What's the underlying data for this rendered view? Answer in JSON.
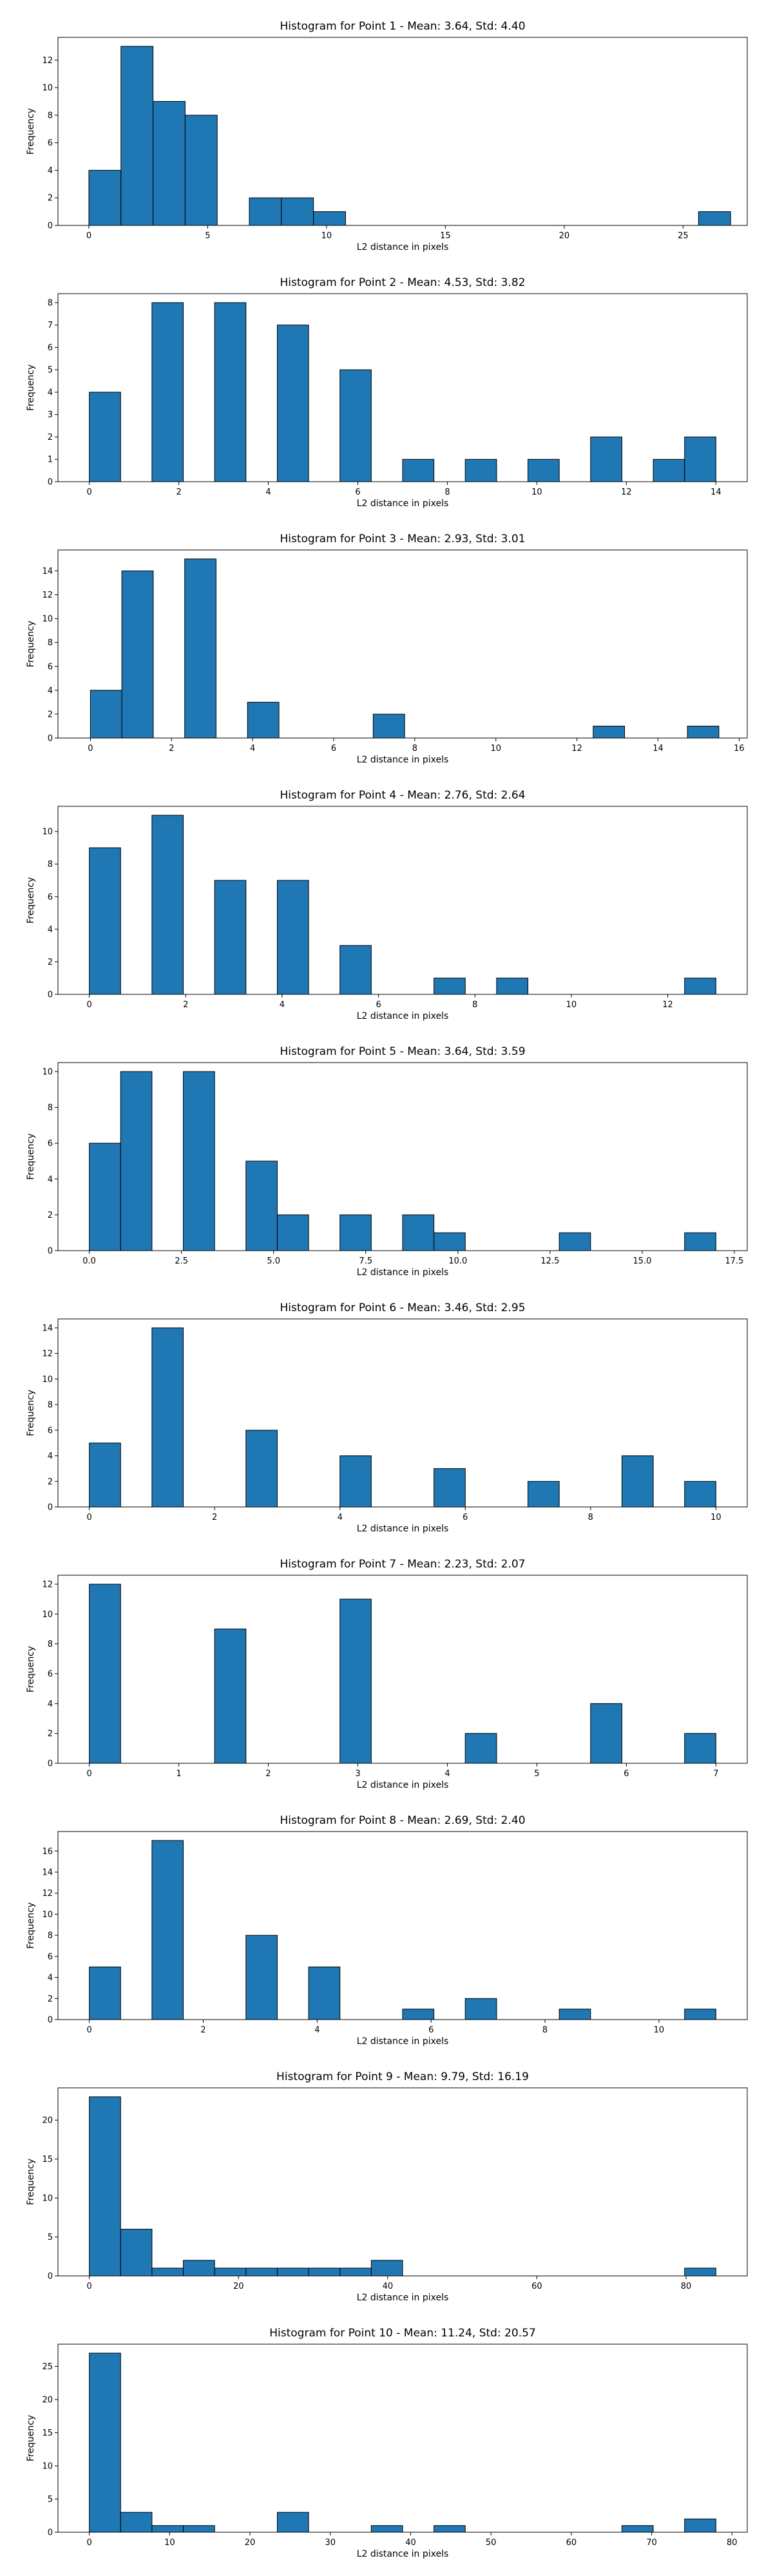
{
  "colors": {
    "bar_fill": "#1f77b4",
    "bar_edge": "#000000",
    "background": "#ffffff"
  },
  "chart_data": [
    {
      "type": "bar",
      "title": "Histogram for Point 1 - Mean: 3.64, Std: 4.40",
      "xlabel": "L2 distance in pixels",
      "ylabel": "Frequency",
      "xlim": [
        -1.3,
        27.7
      ],
      "ylim": [
        0,
        13.65
      ],
      "xticks": [
        {
          "v": 0,
          "label": "0"
        },
        {
          "v": 5,
          "label": "5"
        },
        {
          "v": 10,
          "label": "10"
        },
        {
          "v": 15,
          "label": "15"
        },
        {
          "v": 20,
          "label": "20"
        },
        {
          "v": 25,
          "label": "25"
        }
      ],
      "yticks": [
        {
          "v": 0,
          "label": "0"
        },
        {
          "v": 2,
          "label": "2"
        },
        {
          "v": 4,
          "label": "4"
        },
        {
          "v": 6,
          "label": "6"
        },
        {
          "v": 8,
          "label": "8"
        },
        {
          "v": 10,
          "label": "10"
        },
        {
          "v": 12,
          "label": "12"
        }
      ],
      "bins": [
        {
          "x0": 0,
          "x1": 1.35,
          "count": 4
        },
        {
          "x0": 1.35,
          "x1": 2.7,
          "count": 13
        },
        {
          "x0": 2.7,
          "x1": 4.05,
          "count": 9
        },
        {
          "x0": 4.05,
          "x1": 5.4,
          "count": 8
        },
        {
          "x0": 6.75,
          "x1": 8.1,
          "count": 2
        },
        {
          "x0": 8.1,
          "x1": 9.45,
          "count": 2
        },
        {
          "x0": 9.45,
          "x1": 10.8,
          "count": 1
        },
        {
          "x0": 25.65,
          "x1": 27.0,
          "count": 1
        }
      ]
    },
    {
      "type": "bar",
      "title": "Histogram for Point 2 - Mean: 4.53, Std: 3.82",
      "xlabel": "L2 distance in pixels",
      "ylabel": "Frequency",
      "xlim": [
        -0.7,
        14.7
      ],
      "ylim": [
        0,
        8.4
      ],
      "xticks": [
        {
          "v": 0,
          "label": "0"
        },
        {
          "v": 2,
          "label": "2"
        },
        {
          "v": 4,
          "label": "4"
        },
        {
          "v": 6,
          "label": "6"
        },
        {
          "v": 8,
          "label": "8"
        },
        {
          "v": 10,
          "label": "10"
        },
        {
          "v": 12,
          "label": "12"
        },
        {
          "v": 14,
          "label": "14"
        }
      ],
      "yticks": [
        {
          "v": 0,
          "label": "0"
        },
        {
          "v": 1,
          "label": "1"
        },
        {
          "v": 2,
          "label": "2"
        },
        {
          "v": 3,
          "label": "3"
        },
        {
          "v": 4,
          "label": "4"
        },
        {
          "v": 5,
          "label": "5"
        },
        {
          "v": 6,
          "label": "6"
        },
        {
          "v": 7,
          "label": "7"
        },
        {
          "v": 8,
          "label": "8"
        }
      ],
      "bins": [
        {
          "x0": 0,
          "x1": 0.7,
          "count": 4
        },
        {
          "x0": 1.4,
          "x1": 2.1,
          "count": 8
        },
        {
          "x0": 2.8,
          "x1": 3.5,
          "count": 8
        },
        {
          "x0": 4.2,
          "x1": 4.9,
          "count": 7
        },
        {
          "x0": 5.6,
          "x1": 6.3,
          "count": 5
        },
        {
          "x0": 7.0,
          "x1": 7.7,
          "count": 1
        },
        {
          "x0": 8.4,
          "x1": 9.1,
          "count": 1
        },
        {
          "x0": 9.8,
          "x1": 10.5,
          "count": 1
        },
        {
          "x0": 11.2,
          "x1": 11.9,
          "count": 2
        },
        {
          "x0": 12.6,
          "x1": 13.3,
          "count": 1
        },
        {
          "x0": 13.3,
          "x1": 14.0,
          "count": 2
        }
      ]
    },
    {
      "type": "bar",
      "title": "Histogram for Point 3 - Mean: 2.93, Std: 3.01",
      "xlabel": "L2 distance in pixels",
      "ylabel": "Frequency",
      "xlim": [
        -0.8,
        16.2
      ],
      "ylim": [
        0,
        15.75
      ],
      "xticks": [
        {
          "v": 0,
          "label": "0"
        },
        {
          "v": 2,
          "label": "2"
        },
        {
          "v": 4,
          "label": "4"
        },
        {
          "v": 6,
          "label": "6"
        },
        {
          "v": 8,
          "label": "8"
        },
        {
          "v": 10,
          "label": "10"
        },
        {
          "v": 12,
          "label": "12"
        },
        {
          "v": 14,
          "label": "14"
        },
        {
          "v": 16,
          "label": "16"
        }
      ],
      "yticks": [
        {
          "v": 0,
          "label": "0"
        },
        {
          "v": 2,
          "label": "2"
        },
        {
          "v": 4,
          "label": "4"
        },
        {
          "v": 6,
          "label": "6"
        },
        {
          "v": 8,
          "label": "8"
        },
        {
          "v": 10,
          "label": "10"
        },
        {
          "v": 12,
          "label": "12"
        },
        {
          "v": 14,
          "label": "14"
        }
      ],
      "bins": [
        {
          "x0": 0,
          "x1": 0.775,
          "count": 4
        },
        {
          "x0": 0.775,
          "x1": 1.55,
          "count": 14
        },
        {
          "x0": 2.325,
          "x1": 3.1,
          "count": 15
        },
        {
          "x0": 3.875,
          "x1": 4.65,
          "count": 3
        },
        {
          "x0": 6.975,
          "x1": 7.75,
          "count": 2
        },
        {
          "x0": 12.4,
          "x1": 13.175,
          "count": 1
        },
        {
          "x0": 14.725,
          "x1": 15.5,
          "count": 1
        }
      ]
    },
    {
      "type": "bar",
      "title": "Histogram for Point 4 - Mean: 2.76, Std: 2.64",
      "xlabel": "L2 distance in pixels",
      "ylabel": "Frequency",
      "xlim": [
        -0.65,
        13.65
      ],
      "ylim": [
        0,
        11.55
      ],
      "xticks": [
        {
          "v": 0,
          "label": "0"
        },
        {
          "v": 2,
          "label": "2"
        },
        {
          "v": 4,
          "label": "4"
        },
        {
          "v": 6,
          "label": "6"
        },
        {
          "v": 8,
          "label": "8"
        },
        {
          "v": 10,
          "label": "10"
        },
        {
          "v": 12,
          "label": "12"
        }
      ],
      "yticks": [
        {
          "v": 0,
          "label": "0"
        },
        {
          "v": 2,
          "label": "2"
        },
        {
          "v": 4,
          "label": "4"
        },
        {
          "v": 6,
          "label": "6"
        },
        {
          "v": 8,
          "label": "8"
        },
        {
          "v": 10,
          "label": "10"
        }
      ],
      "bins": [
        {
          "x0": 0,
          "x1": 0.65,
          "count": 9
        },
        {
          "x0": 1.3,
          "x1": 1.95,
          "count": 11
        },
        {
          "x0": 2.6,
          "x1": 3.25,
          "count": 7
        },
        {
          "x0": 3.9,
          "x1": 4.55,
          "count": 7
        },
        {
          "x0": 5.2,
          "x1": 5.85,
          "count": 3
        },
        {
          "x0": 7.15,
          "x1": 7.8,
          "count": 1
        },
        {
          "x0": 8.45,
          "x1": 9.1,
          "count": 1
        },
        {
          "x0": 12.35,
          "x1": 13.0,
          "count": 1
        }
      ]
    },
    {
      "type": "bar",
      "title": "Histogram for Point 5 - Mean: 3.64, Std: 3.59",
      "xlabel": "L2 distance in pixels",
      "ylabel": "Frequency",
      "xlim": [
        -0.85,
        17.85
      ],
      "ylim": [
        0,
        10.5
      ],
      "xticks": [
        {
          "v": 0,
          "label": "0.0"
        },
        {
          "v": 2.5,
          "label": "2.5"
        },
        {
          "v": 5,
          "label": "5.0"
        },
        {
          "v": 7.5,
          "label": "7.5"
        },
        {
          "v": 10,
          "label": "10.0"
        },
        {
          "v": 12.5,
          "label": "12.5"
        },
        {
          "v": 15,
          "label": "15.0"
        },
        {
          "v": 17.5,
          "label": "17.5"
        }
      ],
      "yticks": [
        {
          "v": 0,
          "label": "0"
        },
        {
          "v": 2,
          "label": "2"
        },
        {
          "v": 4,
          "label": "4"
        },
        {
          "v": 6,
          "label": "6"
        },
        {
          "v": 8,
          "label": "8"
        },
        {
          "v": 10,
          "label": "10"
        }
      ],
      "bins": [
        {
          "x0": 0,
          "x1": 0.85,
          "count": 6
        },
        {
          "x0": 0.85,
          "x1": 1.7,
          "count": 10
        },
        {
          "x0": 2.55,
          "x1": 3.4,
          "count": 10
        },
        {
          "x0": 4.25,
          "x1": 5.1,
          "count": 5
        },
        {
          "x0": 5.1,
          "x1": 5.95,
          "count": 2
        },
        {
          "x0": 6.8,
          "x1": 7.65,
          "count": 2
        },
        {
          "x0": 8.5,
          "x1": 9.35,
          "count": 2
        },
        {
          "x0": 9.35,
          "x1": 10.2,
          "count": 1
        },
        {
          "x0": 12.75,
          "x1": 13.6,
          "count": 1
        },
        {
          "x0": 16.15,
          "x1": 17.0,
          "count": 1
        }
      ]
    },
    {
      "type": "bar",
      "title": "Histogram for Point 6 - Mean: 3.46, Std: 2.95",
      "xlabel": "L2 distance in pixels",
      "ylabel": "Frequency",
      "xlim": [
        -0.5,
        10.5
      ],
      "ylim": [
        0,
        14.7
      ],
      "xticks": [
        {
          "v": 0,
          "label": "0"
        },
        {
          "v": 2,
          "label": "2"
        },
        {
          "v": 4,
          "label": "4"
        },
        {
          "v": 6,
          "label": "6"
        },
        {
          "v": 8,
          "label": "8"
        },
        {
          "v": 10,
          "label": "10"
        }
      ],
      "yticks": [
        {
          "v": 0,
          "label": "0"
        },
        {
          "v": 2,
          "label": "2"
        },
        {
          "v": 4,
          "label": "4"
        },
        {
          "v": 6,
          "label": "6"
        },
        {
          "v": 8,
          "label": "8"
        },
        {
          "v": 10,
          "label": "10"
        },
        {
          "v": 12,
          "label": "12"
        },
        {
          "v": 14,
          "label": "14"
        }
      ],
      "bins": [
        {
          "x0": 0,
          "x1": 0.5,
          "count": 5
        },
        {
          "x0": 1.0,
          "x1": 1.5,
          "count": 14
        },
        {
          "x0": 2.5,
          "x1": 3.0,
          "count": 6
        },
        {
          "x0": 4.0,
          "x1": 4.5,
          "count": 4
        },
        {
          "x0": 5.5,
          "x1": 6.0,
          "count": 3
        },
        {
          "x0": 7.0,
          "x1": 7.5,
          "count": 2
        },
        {
          "x0": 8.5,
          "x1": 9.0,
          "count": 4
        },
        {
          "x0": 9.5,
          "x1": 10.0,
          "count": 2
        }
      ]
    },
    {
      "type": "bar",
      "title": "Histogram for Point 7 - Mean: 2.23, Std: 2.07",
      "xlabel": "L2 distance in pixels",
      "ylabel": "Frequency",
      "xlim": [
        -0.35,
        7.35
      ],
      "ylim": [
        0,
        12.6
      ],
      "xticks": [
        {
          "v": 0,
          "label": "0"
        },
        {
          "v": 1,
          "label": "1"
        },
        {
          "v": 2,
          "label": "2"
        },
        {
          "v": 3,
          "label": "3"
        },
        {
          "v": 4,
          "label": "4"
        },
        {
          "v": 5,
          "label": "5"
        },
        {
          "v": 6,
          "label": "6"
        },
        {
          "v": 7,
          "label": "7"
        }
      ],
      "yticks": [
        {
          "v": 0,
          "label": "0"
        },
        {
          "v": 2,
          "label": "2"
        },
        {
          "v": 4,
          "label": "4"
        },
        {
          "v": 6,
          "label": "6"
        },
        {
          "v": 8,
          "label": "8"
        },
        {
          "v": 10,
          "label": "10"
        },
        {
          "v": 12,
          "label": "12"
        }
      ],
      "bins": [
        {
          "x0": 0,
          "x1": 0.35,
          "count": 12
        },
        {
          "x0": 1.4,
          "x1": 1.75,
          "count": 9
        },
        {
          "x0": 2.8,
          "x1": 3.15,
          "count": 11
        },
        {
          "x0": 4.2,
          "x1": 4.55,
          "count": 2
        },
        {
          "x0": 5.6,
          "x1": 5.95,
          "count": 4
        },
        {
          "x0": 6.65,
          "x1": 7.0,
          "count": 2
        }
      ]
    },
    {
      "type": "bar",
      "title": "Histogram for Point 8 - Mean: 2.69, Std: 2.40",
      "xlabel": "L2 distance in pixels",
      "ylabel": "Frequency",
      "xlim": [
        -0.55,
        11.55
      ],
      "ylim": [
        0,
        17.85
      ],
      "xticks": [
        {
          "v": 0,
          "label": "0"
        },
        {
          "v": 2,
          "label": "2"
        },
        {
          "v": 4,
          "label": "4"
        },
        {
          "v": 6,
          "label": "6"
        },
        {
          "v": 8,
          "label": "8"
        },
        {
          "v": 10,
          "label": "10"
        }
      ],
      "yticks": [
        {
          "v": 0,
          "label": "0"
        },
        {
          "v": 2,
          "label": "2"
        },
        {
          "v": 4,
          "label": "4"
        },
        {
          "v": 6,
          "label": "6"
        },
        {
          "v": 8,
          "label": "8"
        },
        {
          "v": 10,
          "label": "10"
        },
        {
          "v": 12,
          "label": "12"
        },
        {
          "v": 14,
          "label": "14"
        },
        {
          "v": 16,
          "label": "16"
        }
      ],
      "bins": [
        {
          "x0": 0,
          "x1": 0.55,
          "count": 5
        },
        {
          "x0": 1.1,
          "x1": 1.65,
          "count": 17
        },
        {
          "x0": 2.75,
          "x1": 3.3,
          "count": 8
        },
        {
          "x0": 3.85,
          "x1": 4.4,
          "count": 5
        },
        {
          "x0": 5.5,
          "x1": 6.05,
          "count": 1
        },
        {
          "x0": 6.6,
          "x1": 7.15,
          "count": 2
        },
        {
          "x0": 8.25,
          "x1": 8.8,
          "count": 1
        },
        {
          "x0": 10.45,
          "x1": 11.0,
          "count": 1
        }
      ]
    },
    {
      "type": "bar",
      "title": "Histogram for Point 9 - Mean: 9.79, Std: 16.19",
      "xlabel": "L2 distance in pixels",
      "ylabel": "Frequency",
      "xlim": [
        -4.2,
        88.2
      ],
      "ylim": [
        0,
        24.15
      ],
      "xticks": [
        {
          "v": 0,
          "label": "0"
        },
        {
          "v": 20,
          "label": "20"
        },
        {
          "v": 40,
          "label": "40"
        },
        {
          "v": 60,
          "label": "60"
        },
        {
          "v": 80,
          "label": "80"
        }
      ],
      "yticks": [
        {
          "v": 0,
          "label": "0"
        },
        {
          "v": 5,
          "label": "5"
        },
        {
          "v": 10,
          "label": "10"
        },
        {
          "v": 15,
          "label": "15"
        },
        {
          "v": 20,
          "label": "20"
        }
      ],
      "bins": [
        {
          "x0": 0,
          "x1": 4.2,
          "count": 23
        },
        {
          "x0": 4.2,
          "x1": 8.4,
          "count": 6
        },
        {
          "x0": 8.4,
          "x1": 12.6,
          "count": 1
        },
        {
          "x0": 12.6,
          "x1": 16.8,
          "count": 2
        },
        {
          "x0": 16.8,
          "x1": 21.0,
          "count": 1
        },
        {
          "x0": 21.0,
          "x1": 25.2,
          "count": 1
        },
        {
          "x0": 25.2,
          "x1": 29.4,
          "count": 1
        },
        {
          "x0": 29.4,
          "x1": 33.6,
          "count": 1
        },
        {
          "x0": 33.6,
          "x1": 37.8,
          "count": 1
        },
        {
          "x0": 37.8,
          "x1": 42.0,
          "count": 2
        },
        {
          "x0": 79.8,
          "x1": 84.0,
          "count": 1
        }
      ]
    },
    {
      "type": "bar",
      "title": "Histogram for Point 10 - Mean: 11.24, Std: 20.57",
      "xlabel": "L2 distance in pixels",
      "ylabel": "Frequency",
      "xlim": [
        -3.9,
        81.9
      ],
      "ylim": [
        0,
        28.35
      ],
      "xticks": [
        {
          "v": 0,
          "label": "0"
        },
        {
          "v": 10,
          "label": "10"
        },
        {
          "v": 20,
          "label": "20"
        },
        {
          "v": 30,
          "label": "30"
        },
        {
          "v": 40,
          "label": "40"
        },
        {
          "v": 50,
          "label": "50"
        },
        {
          "v": 60,
          "label": "60"
        },
        {
          "v": 70,
          "label": "70"
        },
        {
          "v": 80,
          "label": "80"
        }
      ],
      "yticks": [
        {
          "v": 0,
          "label": "0"
        },
        {
          "v": 5,
          "label": "5"
        },
        {
          "v": 10,
          "label": "10"
        },
        {
          "v": 15,
          "label": "15"
        },
        {
          "v": 20,
          "label": "20"
        },
        {
          "v": 25,
          "label": "25"
        }
      ],
      "bins": [
        {
          "x0": 0,
          "x1": 3.9,
          "count": 27
        },
        {
          "x0": 3.9,
          "x1": 7.8,
          "count": 3
        },
        {
          "x0": 7.8,
          "x1": 11.7,
          "count": 1
        },
        {
          "x0": 11.7,
          "x1": 15.6,
          "count": 1
        },
        {
          "x0": 23.4,
          "x1": 27.3,
          "count": 3
        },
        {
          "x0": 35.1,
          "x1": 39.0,
          "count": 1
        },
        {
          "x0": 42.9,
          "x1": 46.8,
          "count": 1
        },
        {
          "x0": 66.3,
          "x1": 70.2,
          "count": 1
        },
        {
          "x0": 74.1,
          "x1": 78.0,
          "count": 2
        }
      ]
    }
  ]
}
